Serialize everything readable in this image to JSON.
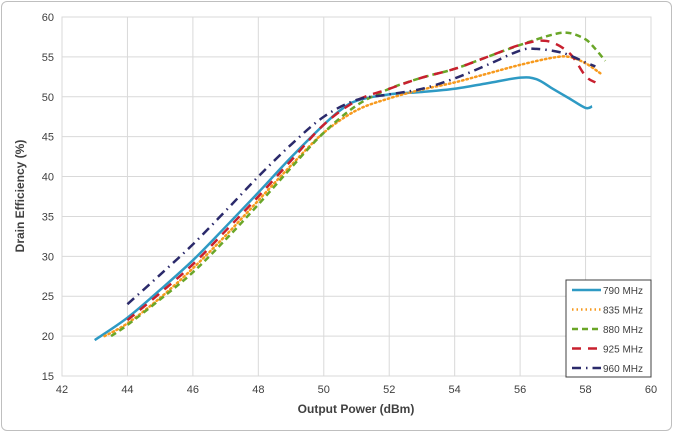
{
  "chart_data": {
    "type": "line",
    "title": "",
    "xlabel": "Output Power (dBm)",
    "ylabel": "Drain Efficiency (%)",
    "xlim": [
      42,
      60
    ],
    "ylim": [
      15,
      60
    ],
    "xticks": [
      42,
      44,
      46,
      48,
      50,
      52,
      54,
      56,
      58,
      60
    ],
    "yticks": [
      15,
      20,
      25,
      30,
      35,
      40,
      45,
      50,
      55,
      60
    ],
    "grid": true,
    "legend_position": "bottom-right",
    "series": [
      {
        "name": "790 MHz",
        "color": "#2e9ac4",
        "dash": "solid",
        "x": [
          43,
          44,
          45,
          46,
          47,
          48,
          49,
          50,
          50.5,
          51,
          52,
          53,
          54,
          55,
          56,
          56.5,
          57,
          57.5,
          58,
          58.2
        ],
        "y": [
          19.5,
          22.3,
          25.8,
          29.5,
          33.7,
          38,
          42.4,
          46.5,
          48.3,
          49.5,
          50.3,
          50.6,
          51,
          51.7,
          52.4,
          52.2,
          51,
          49.8,
          48.6,
          48.8
        ]
      },
      {
        "name": "835 MHz",
        "color": "#f79a1e",
        "dash": "dotted",
        "x": [
          43.3,
          44,
          45,
          46,
          47,
          48,
          49,
          50,
          51,
          52,
          53,
          54,
          55,
          56,
          57,
          57.5,
          58,
          58.5
        ],
        "y": [
          20,
          21.6,
          24.8,
          28.5,
          32.6,
          37,
          41.4,
          45.5,
          48.3,
          49.8,
          50.9,
          51.8,
          52.9,
          54,
          54.9,
          55,
          54.2,
          52.8
        ]
      },
      {
        "name": "880 MHz",
        "color": "#6aa628",
        "dash": "dashed",
        "x": [
          43.5,
          44,
          45,
          46,
          47,
          48,
          49,
          50,
          51,
          52,
          53,
          54,
          55,
          56,
          57,
          57.5,
          58,
          58.3,
          58.6
        ],
        "y": [
          20,
          21.4,
          24.6,
          28,
          32.1,
          36.5,
          41.1,
          45.5,
          48.9,
          51,
          52.4,
          53.5,
          55,
          56.5,
          57.8,
          58,
          57.2,
          56,
          54.5
        ]
      },
      {
        "name": "925 MHz",
        "color": "#c8202f",
        "dash": "long-dash",
        "x": [
          44,
          45,
          46,
          47,
          48,
          49,
          50,
          51,
          52,
          53,
          54,
          55,
          56,
          56.8,
          57.5,
          58,
          58.3
        ],
        "y": [
          22,
          25.4,
          29,
          33.2,
          37.5,
          42,
          46.5,
          49.5,
          51,
          52.4,
          53.5,
          55,
          56.5,
          57,
          55.5,
          52.6,
          51.8
        ]
      },
      {
        "name": "960 MHz",
        "color": "#2b2a6b",
        "dash": "dash-dot",
        "x": [
          44,
          45,
          46,
          47,
          48,
          49,
          50,
          51,
          52,
          53,
          54,
          55,
          56,
          56.5,
          57.3,
          58,
          58.3
        ],
        "y": [
          24,
          27.7,
          31.5,
          35.7,
          40,
          44,
          47.5,
          49.6,
          50.3,
          51,
          52.3,
          54,
          55.8,
          56,
          55.5,
          54.3,
          53.8
        ]
      }
    ]
  }
}
